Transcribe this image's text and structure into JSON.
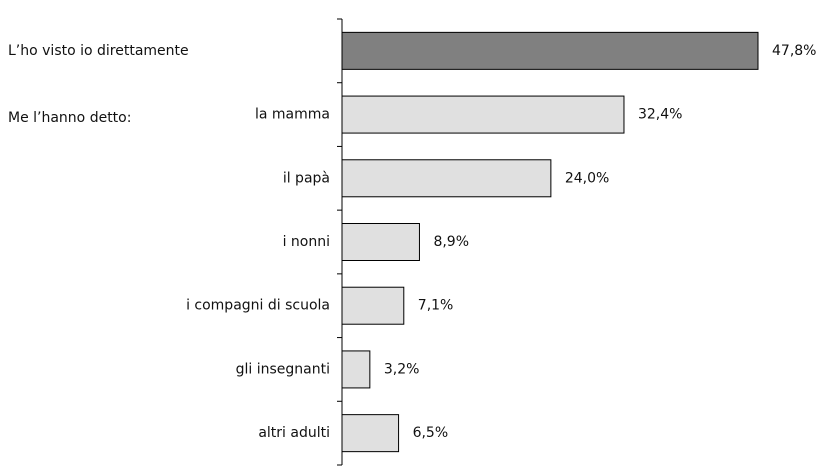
{
  "chart_data": {
    "type": "bar",
    "orientation": "horizontal",
    "group_label": "Me l’hanno detto:",
    "categories": [
      "L’ho visto io direttamente",
      "la mamma",
      "il papà",
      "i nonni",
      "i compagni di scuola",
      "gli insegnanti",
      "altri adulti"
    ],
    "values": [
      47.8,
      32.4,
      24.0,
      8.9,
      7.1,
      3.2,
      6.5
    ],
    "value_labels": [
      "47,8%",
      "32,4%",
      "24,0%",
      "8,9%",
      "7,1%",
      "3,2%",
      "6,5%"
    ],
    "colors": [
      "#808080",
      "#e0e0e0",
      "#e0e0e0",
      "#e0e0e0",
      "#e0e0e0",
      "#e0e0e0",
      "#e0e0e0"
    ]
  }
}
